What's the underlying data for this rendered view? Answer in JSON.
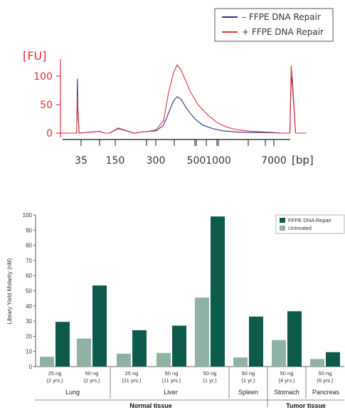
{
  "colors": {
    "minus_line": "#2b2f8f",
    "plus_line": "#e0303a",
    "axis_red": "#e0303a",
    "dark_bar": "#0e5b4c",
    "light_bar": "#8fb1a6"
  },
  "chart_data": [
    {
      "type": "line",
      "title": "",
      "ylabel": "[FU]",
      "xlabel": "[bp]",
      "yticks": [
        0,
        50,
        100
      ],
      "ylim": [
        -8,
        130
      ],
      "xtick_labels": [
        "35",
        "150",
        "300",
        "500",
        "1000",
        "7000"
      ],
      "legend": {
        "placement": "top-right"
      },
      "series": [
        {
          "name": "– FFPE DNA Repair",
          "color": "#2b2f8f",
          "x": [
            0,
            0.066,
            0.069,
            0.071,
            0.073,
            0.076,
            0.16,
            0.18,
            0.2,
            0.235,
            0.3,
            0.33,
            0.36,
            0.39,
            0.42,
            0.445,
            0.46,
            0.475,
            0.49,
            0.51,
            0.53,
            0.55,
            0.58,
            0.62,
            0.66,
            0.72,
            0.78,
            0.84,
            0.9,
            0.935,
            0.94,
            0.945,
            0.952,
            0.958,
            1.0
          ],
          "y": [
            0,
            0,
            95,
            45,
            28,
            0,
            3,
            0,
            0,
            8,
            0,
            2,
            3,
            4,
            14,
            40,
            56,
            64,
            60,
            46,
            34,
            24,
            14,
            8,
            4,
            2,
            1,
            1,
            0,
            0,
            100,
            85,
            40,
            0,
            0
          ]
        },
        {
          "name": "+ FFPE DNA Repair",
          "color": "#e0303a",
          "x": [
            0,
            0.066,
            0.069,
            0.071,
            0.073,
            0.076,
            0.16,
            0.18,
            0.2,
            0.235,
            0.3,
            0.33,
            0.36,
            0.39,
            0.42,
            0.44,
            0.46,
            0.475,
            0.49,
            0.51,
            0.53,
            0.56,
            0.6,
            0.64,
            0.68,
            0.72,
            0.78,
            0.84,
            0.9,
            0.935,
            0.94,
            0.945,
            0.952,
            0.958,
            1.0
          ],
          "y": [
            0,
            0,
            65,
            40,
            25,
            0,
            3,
            0,
            0,
            9,
            0,
            2,
            3,
            6,
            22,
            70,
            105,
            120,
            112,
            92,
            72,
            50,
            32,
            18,
            10,
            6,
            3,
            2,
            0,
            0,
            118,
            95,
            45,
            0,
            0
          ]
        }
      ]
    },
    {
      "type": "bar",
      "ylabel": "Library Yield Molarity (nM)",
      "ylim": [
        0,
        100
      ],
      "yticks": [
        0,
        10,
        20,
        30,
        40,
        50,
        60,
        70,
        80,
        90,
        100
      ],
      "legend": {
        "placement": "top-right"
      },
      "categories": [
        [
          "25 ng",
          "(2 yrs.)"
        ],
        [
          "50 ng",
          "(2 yrs.)"
        ],
        [
          "25 ng",
          "(11 yrs.)"
        ],
        [
          "50 ng",
          "(11 yrs.)"
        ],
        [
          "50 ng",
          "(1 yr.)"
        ],
        [
          "50 ng",
          "(1 yr.)"
        ],
        [
          "50 ng",
          "(4 yrs.)"
        ],
        [
          "50 ng",
          "(6 yrs.)"
        ]
      ],
      "series": [
        {
          "name": "FFPE DNA Repair",
          "color": "#0e5b4c",
          "values": [
            29.5,
            53.5,
            24,
            27,
            99,
            33,
            36.5,
            9.5
          ]
        },
        {
          "name": "Untreated",
          "color": "#8fb1a6",
          "values": [
            6.5,
            18.5,
            8.5,
            9,
            45.5,
            6,
            17.5,
            5
          ]
        }
      ],
      "tissues": [
        "Lung",
        "Liver",
        "Spleen",
        "Stomach",
        "Pancreas"
      ],
      "groups": [
        "Normal tissue",
        "Tumor tissue"
      ]
    }
  ]
}
